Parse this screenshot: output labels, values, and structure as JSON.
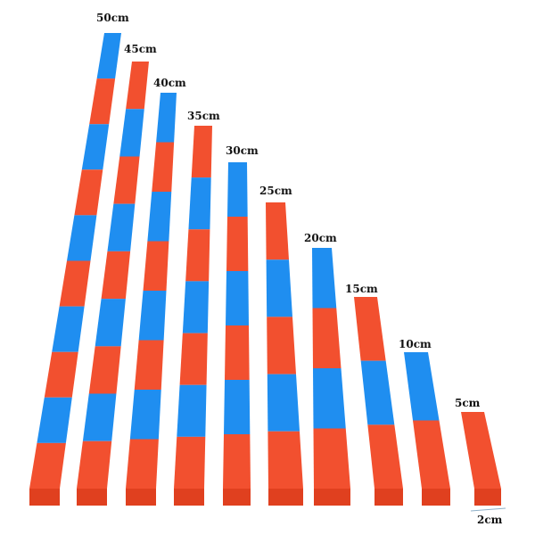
{
  "colors": {
    "red": "#f2502f",
    "red_front": "#e0401f",
    "blue": "#1f8ef0",
    "background": "#ffffff"
  },
  "rods": [
    {
      "label": "50cm",
      "length_cm": 50,
      "segments": 10
    },
    {
      "label": "45cm",
      "length_cm": 45,
      "segments": 9
    },
    {
      "label": "40cm",
      "length_cm": 40,
      "segments": 8
    },
    {
      "label": "35cm",
      "length_cm": 35,
      "segments": 7
    },
    {
      "label": "30cm",
      "length_cm": 30,
      "segments": 6
    },
    {
      "label": "25cm",
      "length_cm": 25,
      "segments": 5
    },
    {
      "label": "20cm",
      "length_cm": 20,
      "segments": 4
    },
    {
      "label": "15cm",
      "length_cm": 15,
      "segments": 3
    },
    {
      "label": "10cm",
      "length_cm": 10,
      "segments": 2
    },
    {
      "label": "5cm",
      "length_cm": 5,
      "segments": 1
    }
  ],
  "width_label": "2cm"
}
